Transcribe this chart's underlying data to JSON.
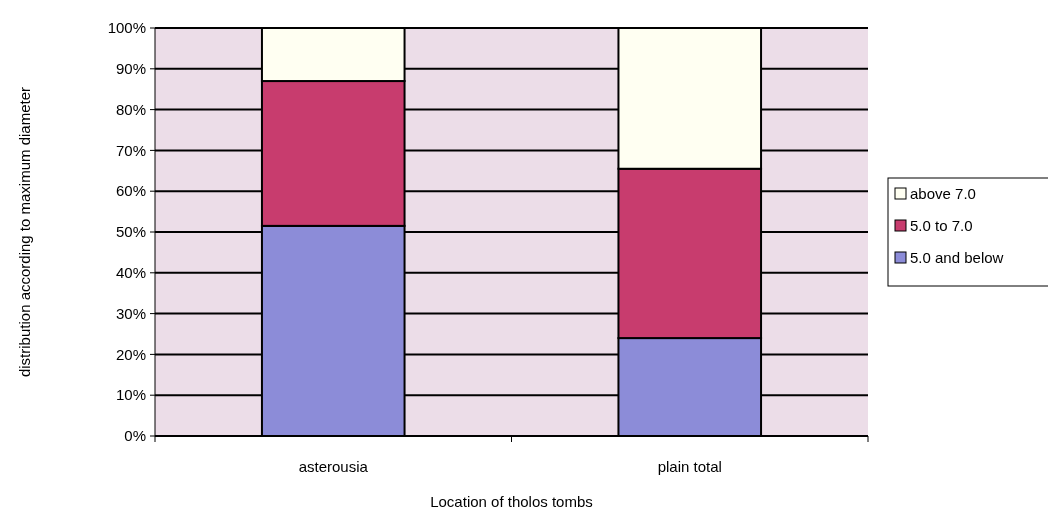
{
  "chart_data": {
    "type": "bar",
    "stacked": true,
    "categories": [
      "asterousia",
      "plain total"
    ],
    "xlabel": "Location of tholos tombs",
    "ylabel": "distribution according to maximum diameter",
    "ylim": [
      0,
      100
    ],
    "yticks": [
      {
        "value": 0,
        "label": "0%"
      },
      {
        "value": 10,
        "label": "10%"
      },
      {
        "value": 20,
        "label": "20%"
      },
      {
        "value": 30,
        "label": "30%"
      },
      {
        "value": 40,
        "label": "40%"
      },
      {
        "value": 50,
        "label": "50%"
      },
      {
        "value": 60,
        "label": "60%"
      },
      {
        "value": 70,
        "label": "70%"
      },
      {
        "value": 80,
        "label": "80%"
      },
      {
        "value": 90,
        "label": "90%"
      },
      {
        "value": 100,
        "label": "100%"
      }
    ],
    "grid": "y",
    "legend": "right",
    "series": [
      {
        "name": "5.0 and below",
        "color": "#8c8cd8",
        "values": [
          51.5,
          24
        ]
      },
      {
        "name": "5.0 to 7.0",
        "color": "#c83c6e",
        "values": [
          35.5,
          41.5
        ]
      },
      {
        "name": "above 7.0",
        "color": "#fffff2",
        "values": [
          13,
          34.5
        ]
      }
    ]
  }
}
